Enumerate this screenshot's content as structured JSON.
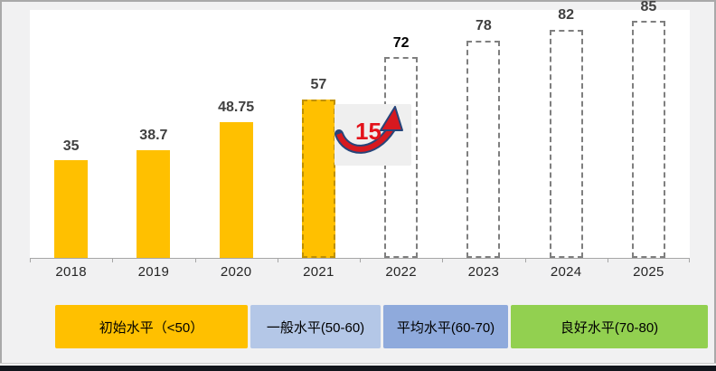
{
  "slide": {
    "background": "#F1F1F2",
    "border_color": "#A9A9A9",
    "bottom_bar_color": "#12151C"
  },
  "chart_data": {
    "type": "bar",
    "title": "",
    "xlabel": "",
    "ylabel": "",
    "categories": [
      "2018",
      "2019",
      "2020",
      "2021",
      "2022",
      "2023",
      "2024",
      "2025"
    ],
    "values": [
      35,
      38.7,
      48.75,
      57,
      72,
      78,
      82,
      85
    ],
    "value_labels": [
      "35",
      "38.7",
      "48.75",
      "57",
      "72",
      "78",
      "82",
      "85"
    ],
    "bar_styles": [
      "solid",
      "solid",
      "solid",
      "current",
      "projected",
      "projected",
      "projected",
      "projected"
    ],
    "emphasized_label_index": 4,
    "ylim": [
      0,
      89
    ],
    "grid": false,
    "axis_visible": "x-only",
    "colors": {
      "bar_fill": "#FFC000",
      "current_border": "#BF9000",
      "projected_border": "#7F7F7F",
      "axis": "#A6A6A6",
      "value_label": "#404040",
      "value_label_emphasis": "#000000",
      "annotation_red": "#E3131B",
      "arrow_fill": "#D7191F",
      "arrow_outline": "#27457A"
    },
    "annotation": {
      "text": "15",
      "meaning": "increase from 2021 to 2022",
      "between": [
        "2021",
        "2022"
      ]
    },
    "legend_position": "bottom",
    "legend": [
      {
        "label": "初始水平（<50）",
        "color": "#FFC000"
      },
      {
        "label": "一般水平(50-60)",
        "color": "#B4C7E7"
      },
      {
        "label": "平均水平(60-70)",
        "color": "#8FAADC"
      },
      {
        "label": "良好水平(70-80)",
        "color": "#92D050"
      }
    ]
  }
}
